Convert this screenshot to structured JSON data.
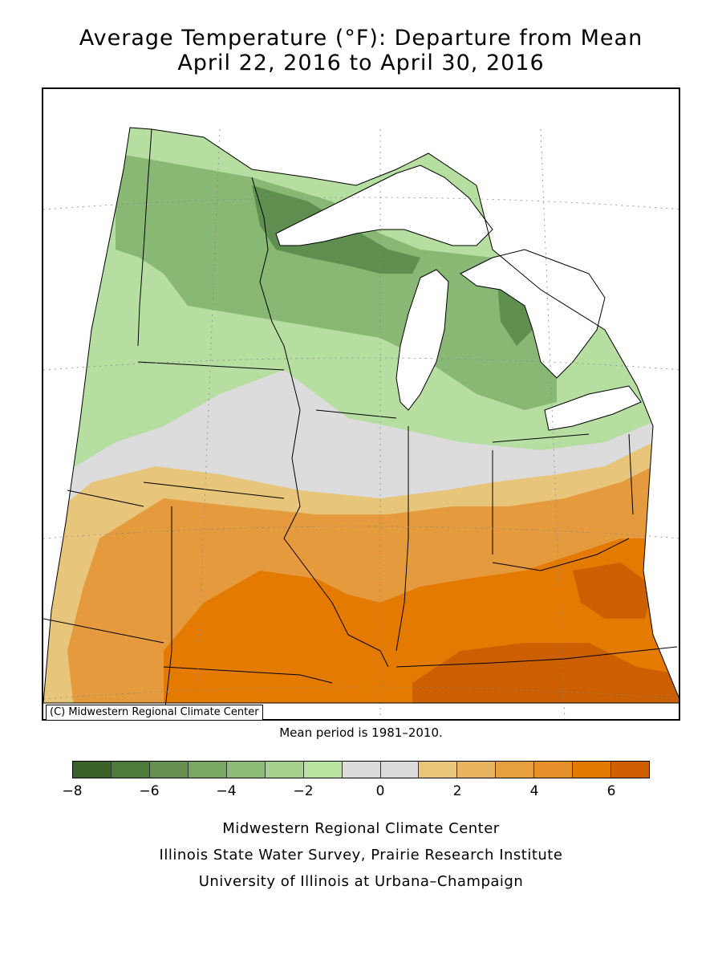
{
  "title": {
    "line1": "Average Temperature (°F): Departure from Mean",
    "line2": "April 22, 2016 to April 30, 2016"
  },
  "map": {
    "copyright": "(C) Midwestern Regional Climate Center",
    "region_colors": {
      "strong_cool": "#5e8f4f",
      "cool": "#89b874",
      "slight_cool": "#b5dea0",
      "neutral": "#dcdcdc",
      "slight_warm": "#e7c57a",
      "warm": "#e69a3e",
      "strong_warm": "#e47b00",
      "very_warm": "#cc5f00",
      "lake": "#ffffff"
    }
  },
  "mean_period": "Mean period is 1981–2010.",
  "legend": {
    "colors": [
      "#386228",
      "#4e7b3a",
      "#66904f",
      "#7ba865",
      "#8fbb78",
      "#a6d08e",
      "#b7e2a0",
      "#dcdcdc",
      "#dcdcdc",
      "#e9c67a",
      "#e8b45f",
      "#e6a040",
      "#e6902a",
      "#e37a00",
      "#cf5f00"
    ],
    "tick_labels": [
      "−8",
      "−6",
      "−4",
      "−2",
      "0",
      "2",
      "4",
      "6"
    ]
  },
  "credits": {
    "line1": "Midwestern Regional Climate Center",
    "line2": "Illinois State Water Survey, Prairie Research Institute",
    "line3": "University of Illinois at Urbana–Champaign"
  }
}
